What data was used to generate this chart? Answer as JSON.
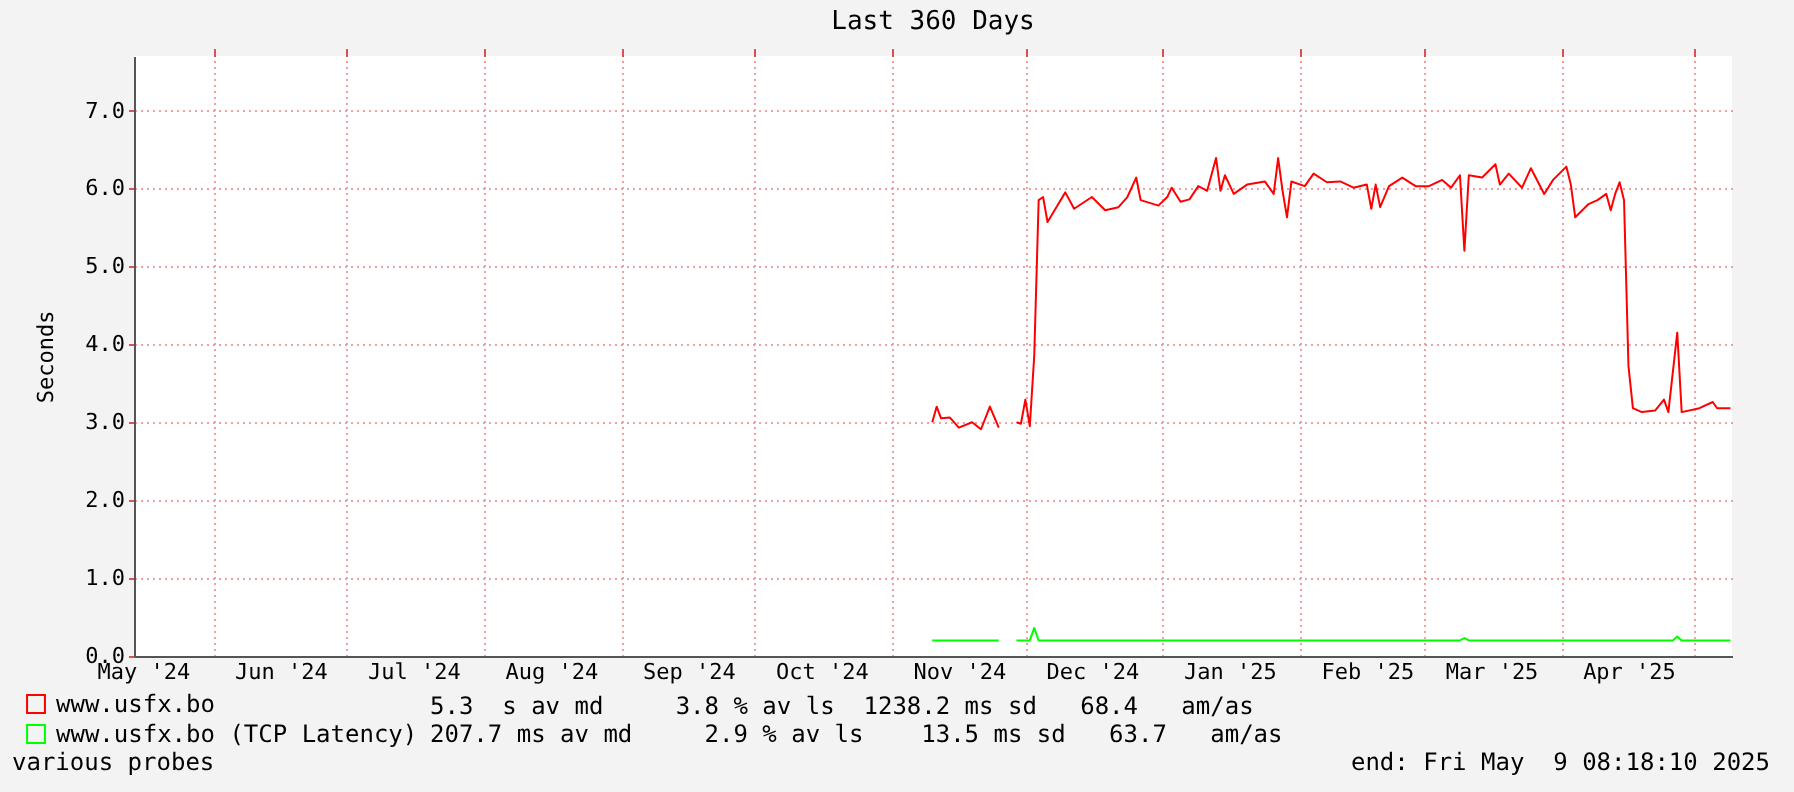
{
  "chart_data": {
    "type": "line",
    "title": "Last 360 Days",
    "ylabel": "Seconds",
    "grid": true,
    "legend": "bottom",
    "xlim": [
      "2024-05-14",
      "2025-05-09T08:18"
    ],
    "xticks": [
      {
        "value": "2024-05-16",
        "label": "May '24"
      },
      {
        "value": "2024-06-01",
        "label": null
      },
      {
        "value": "2024-06-16",
        "label": "Jun '24"
      },
      {
        "value": "2024-07-01",
        "label": null
      },
      {
        "value": "2024-07-16",
        "label": "Jul '24"
      },
      {
        "value": "2024-08-01",
        "label": null
      },
      {
        "value": "2024-08-16",
        "label": "Aug '24"
      },
      {
        "value": "2024-09-01",
        "label": null
      },
      {
        "value": "2024-09-16",
        "label": "Sep '24"
      },
      {
        "value": "2024-10-01",
        "label": null
      },
      {
        "value": "2024-10-16",
        "label": "Oct '24"
      },
      {
        "value": "2024-11-01",
        "label": null
      },
      {
        "value": "2024-11-16",
        "label": "Nov '24"
      },
      {
        "value": "2024-12-01",
        "label": null
      },
      {
        "value": "2024-12-16",
        "label": "Dec '24"
      },
      {
        "value": "2025-01-01",
        "label": null
      },
      {
        "value": "2025-01-16",
        "label": "Jan '25"
      },
      {
        "value": "2025-02-01",
        "label": null
      },
      {
        "value": "2025-02-16",
        "label": "Feb '25"
      },
      {
        "value": "2025-03-01",
        "label": null
      },
      {
        "value": "2025-03-16",
        "label": "Mar '25"
      },
      {
        "value": "2025-04-01",
        "label": null
      },
      {
        "value": "2025-04-16",
        "label": "Apr '25"
      },
      {
        "value": "2025-05-01",
        "label": null
      }
    ],
    "ylim": [
      0,
      7.7
    ],
    "yticks": [
      {
        "value": 0,
        "label": "0.0"
      },
      {
        "value": 1,
        "label": "1.0"
      },
      {
        "value": 2,
        "label": "2.0"
      },
      {
        "value": 3,
        "label": "3.0"
      },
      {
        "value": 4,
        "label": "4.0"
      },
      {
        "value": 5,
        "label": "5.0"
      },
      {
        "value": 6,
        "label": "6.0"
      },
      {
        "value": 7,
        "label": "7.0"
      }
    ],
    "series": [
      {
        "name": "www.usfx.bo",
        "color": "#ff0000",
        "x": [
          "2024-11-10",
          "2024-11-11",
          "2024-11-12",
          "2024-11-14",
          "2024-11-16",
          "2024-11-19",
          "2024-11-21",
          "2024-11-23",
          "2024-11-25",
          "2024-11-27",
          "2024-11-29",
          "2024-11-30",
          "2024-12-01",
          "2024-12-02",
          "2024-12-03",
          "2024-12-04",
          "2024-12-05",
          "2024-12-06",
          "2024-12-08",
          "2024-12-10",
          "2024-12-12",
          "2024-12-16",
          "2024-12-19",
          "2024-12-22",
          "2024-12-24",
          "2024-12-26",
          "2024-12-27",
          "2024-12-31",
          "2025-01-02",
          "2025-01-03",
          "2025-01-05",
          "2025-01-07",
          "2025-01-09",
          "2025-01-11",
          "2025-01-13",
          "2025-01-14",
          "2025-01-15",
          "2025-01-17",
          "2025-01-20",
          "2025-01-24",
          "2025-01-26",
          "2025-01-27",
          "2025-01-28",
          "2025-01-29",
          "2025-01-30",
          "2025-02-02",
          "2025-02-04",
          "2025-02-07",
          "2025-02-10",
          "2025-02-13",
          "2025-02-16",
          "2025-02-17",
          "2025-02-18",
          "2025-02-19",
          "2025-02-21",
          "2025-02-24",
          "2025-02-27",
          "2025-03-02",
          "2025-03-05",
          "2025-03-07",
          "2025-03-09",
          "2025-03-10",
          "2025-03-11",
          "2025-03-14",
          "2025-03-17",
          "2025-03-18",
          "2025-03-20",
          "2025-03-23",
          "2025-03-25",
          "2025-03-28",
          "2025-03-30",
          "2025-04-02",
          "2025-04-03",
          "2025-04-04",
          "2025-04-07",
          "2025-04-09",
          "2025-04-11",
          "2025-04-12",
          "2025-04-13",
          "2025-04-14",
          "2025-04-15",
          "2025-04-16",
          "2025-04-17",
          "2025-04-19",
          "2025-04-22",
          "2025-04-24",
          "2025-04-25",
          "2025-04-27",
          "2025-04-28",
          "2025-05-02",
          "2025-05-05",
          "2025-05-06",
          "2025-05-09"
        ],
        "values": [
          3.0,
          3.2,
          3.05,
          3.06,
          2.93,
          3.0,
          2.91,
          3.2,
          2.93,
          null,
          3.0,
          2.98,
          3.29,
          2.95,
          3.85,
          5.85,
          5.89,
          5.57,
          5.76,
          5.95,
          5.74,
          5.89,
          5.72,
          5.76,
          5.89,
          6.14,
          5.85,
          5.78,
          5.89,
          6.01,
          5.83,
          5.86,
          6.03,
          5.97,
          6.39,
          5.97,
          6.17,
          5.93,
          6.05,
          6.09,
          5.93,
          6.39,
          5.97,
          5.63,
          6.09,
          6.03,
          6.19,
          6.08,
          6.09,
          6.01,
          6.05,
          5.74,
          6.05,
          5.76,
          6.03,
          6.14,
          6.03,
          6.03,
          6.11,
          6.01,
          6.17,
          5.2,
          6.17,
          6.14,
          6.31,
          6.05,
          6.19,
          6.01,
          6.26,
          5.93,
          6.11,
          6.28,
          6.05,
          5.63,
          5.8,
          5.85,
          5.93,
          5.72,
          5.93,
          6.08,
          5.85,
          3.72,
          3.18,
          3.13,
          3.15,
          3.29,
          3.13,
          4.15,
          3.13,
          3.18,
          3.26,
          3.18,
          3.18
        ]
      },
      {
        "name": "www.usfx.bo (TCP Latency)",
        "color": "#00ff00",
        "x": [
          "2024-11-10",
          "2024-11-25",
          "2024-11-27",
          "2024-11-29",
          "2024-12-02",
          "2024-12-03",
          "2024-12-04",
          "2025-03-09",
          "2025-03-10",
          "2025-03-11",
          "2025-04-26",
          "2025-04-27",
          "2025-04-28",
          "2025-05-09"
        ],
        "values": [
          0.2,
          0.2,
          null,
          0.2,
          0.2,
          0.36,
          0.2,
          0.2,
          0.23,
          0.2,
          0.2,
          0.25,
          0.2,
          0.2
        ]
      }
    ],
    "annotations": [
      "5.3  s av md     3.8 % av ls  1238.2 ms sd   68.4   am/as",
      "207.7 ms av md     2.9 % av ls    13.5 ms sd   63.7   am/as",
      "various probes",
      "end: Fri May  9 08:18:10 2025"
    ]
  }
}
